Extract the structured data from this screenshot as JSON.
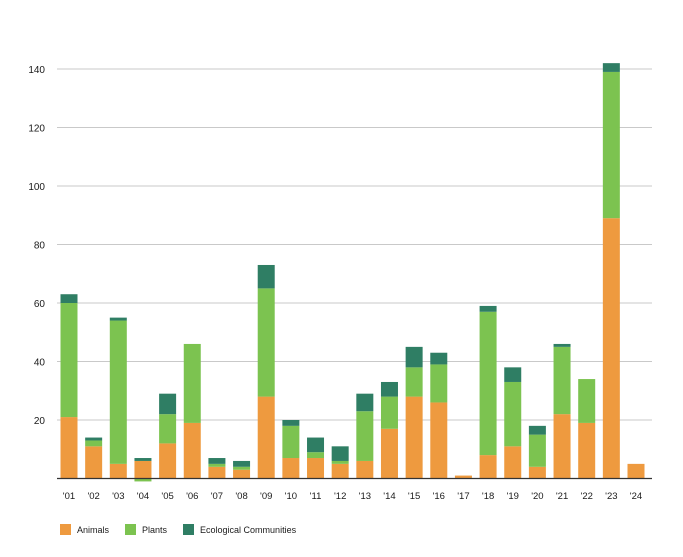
{
  "chart_data": {
    "type": "bar",
    "stacked": true,
    "categories": [
      "'01",
      "'02",
      "'03",
      "'04",
      "'05",
      "'06",
      "'07",
      "'08",
      "'09",
      "'10",
      "'11",
      "'12",
      "'13",
      "'14",
      "'15",
      "'16",
      "'17",
      "'18",
      "'19",
      "'20",
      "'21",
      "'22",
      "'23",
      "'24"
    ],
    "series": [
      {
        "name": "Animals",
        "color": "#ee9a3f",
        "values": [
          21,
          11,
          5,
          6,
          12,
          19,
          4,
          3,
          28,
          7,
          7,
          5,
          6,
          17,
          28,
          26,
          1,
          8,
          11,
          4,
          22,
          19,
          89,
          5
        ]
      },
      {
        "name": "Plants",
        "color": "#7cc350",
        "values": [
          39,
          2,
          49,
          -1,
          10,
          27,
          1,
          1,
          37,
          11,
          2,
          1,
          17,
          11,
          10,
          13,
          0,
          49,
          22,
          11,
          23,
          15,
          50,
          0
        ]
      },
      {
        "name": "Ecological Communities",
        "color": "#2f7e64",
        "values": [
          3,
          1,
          1,
          1,
          7,
          0,
          2,
          2,
          8,
          2,
          5,
          5,
          6,
          5,
          7,
          4,
          0,
          2,
          5,
          3,
          1,
          0,
          3,
          0
        ]
      }
    ],
    "ylim": [
      0,
      140
    ],
    "yticks": [
      20,
      40,
      60,
      80,
      100,
      120,
      140
    ],
    "grid": true,
    "legend_position": "bottom-left",
    "title": "",
    "xlabel": "",
    "ylabel": ""
  }
}
